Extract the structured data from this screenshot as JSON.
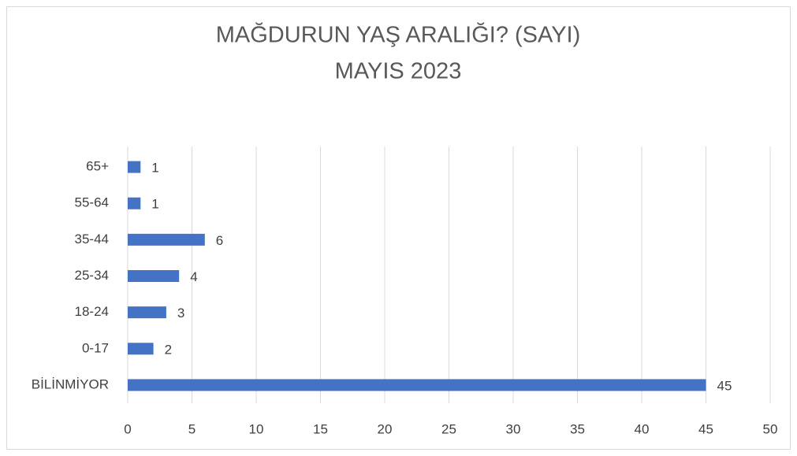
{
  "chart_data": {
    "type": "hbar",
    "title": "MAĞDURUN YAŞ ARALIĞI? (SAYI)",
    "subtitle": "MAYIS 2023",
    "categories": [
      "65+",
      "55-64",
      "35-44",
      "25-34",
      "18-24",
      "0-17",
      "BİLİNMİYOR"
    ],
    "values": [
      1,
      1,
      6,
      4,
      3,
      2,
      45
    ],
    "color": "#4472c4",
    "xlim": [
      0,
      50
    ],
    "xticks": [
      0,
      5,
      10,
      15,
      20,
      25,
      30,
      35,
      40,
      45,
      50
    ],
    "grid": true
  }
}
